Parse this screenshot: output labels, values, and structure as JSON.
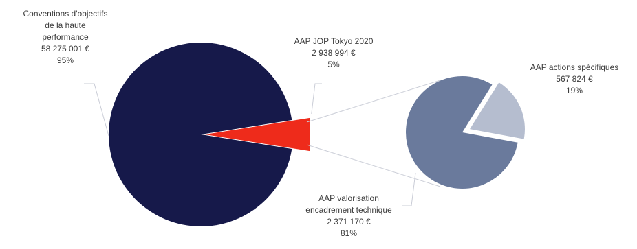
{
  "chart_data": {
    "type": "pie",
    "main_pie": {
      "slices": [
        {
          "label_lines": [
            "Conventions d'objectifs",
            "de la haute",
            "performance"
          ],
          "amount": "58 275 001 €",
          "percent": "95%",
          "value": 95,
          "color": "#16194a"
        },
        {
          "label_lines": [
            "AAP JOP Tokyo 2020"
          ],
          "amount": "2 938 994 €",
          "percent": "5%",
          "value": 5,
          "color": "#ee2b1b"
        }
      ]
    },
    "sub_pie": {
      "slices": [
        {
          "label_lines": [
            "AAP valorisation",
            "encadrement technique"
          ],
          "amount": "2 371 170 €",
          "percent": "81%",
          "value": 81,
          "color": "#6a7a9c"
        },
        {
          "label_lines": [
            "AAP actions spécifiques"
          ],
          "amount": "567 824 €",
          "percent": "19%",
          "value": 19,
          "color": "#b5bdcf"
        }
      ]
    },
    "leader_line_color": "#c9ccd6"
  }
}
